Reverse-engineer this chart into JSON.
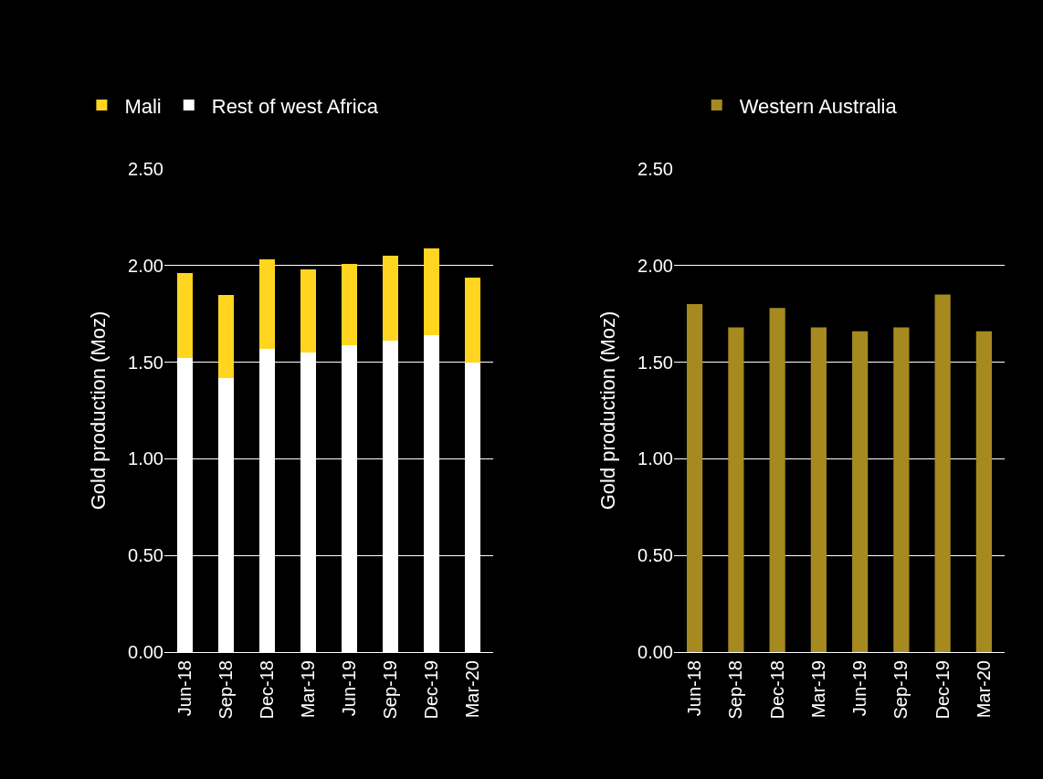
{
  "chart_data": [
    {
      "type": "bar",
      "stacked": true,
      "categories": [
        "Jun-18",
        "Sep-18",
        "Dec-18",
        "Mar-19",
        "Jun-19",
        "Sep-19",
        "Dec-19",
        "Mar-20"
      ],
      "ylabel": "Gold production (Moz)",
      "ylim": [
        0,
        2.5
      ],
      "yticks": [
        {
          "value": 0,
          "label": "0.00"
        },
        {
          "value": 0.5,
          "label": "0.50"
        },
        {
          "value": 1,
          "label": "1.00"
        },
        {
          "value": 1.5,
          "label": "1.50"
        },
        {
          "value": 2,
          "label": "2.00"
        },
        {
          "value": 2.5,
          "label": "2.50"
        }
      ],
      "grid": "y",
      "legend": "top",
      "series": [
        {
          "name": "Rest of west Africa",
          "color": "#ffffff",
          "values": [
            1.52,
            1.42,
            1.57,
            1.55,
            1.59,
            1.61,
            1.64,
            1.5
          ]
        },
        {
          "name": "Mali",
          "color": "#ffd520",
          "values": [
            0.44,
            0.43,
            0.46,
            0.43,
            0.42,
            0.44,
            0.45,
            0.44
          ]
        }
      ]
    },
    {
      "type": "bar",
      "categories": [
        "Jun-18",
        "Sep-18",
        "Dec-18",
        "Mar-19",
        "Jun-19",
        "Sep-19",
        "Dec-19",
        "Mar-20"
      ],
      "ylabel": "Gold production (Moz)",
      "ylim": [
        0,
        2.5
      ],
      "yticks": [
        {
          "value": 0,
          "label": "0.00"
        },
        {
          "value": 0.5,
          "label": "0.50"
        },
        {
          "value": 1,
          "label": "1.00"
        },
        {
          "value": 1.5,
          "label": "1.50"
        },
        {
          "value": 2,
          "label": "2.00"
        },
        {
          "value": 2.5,
          "label": "2.50"
        }
      ],
      "grid": "y",
      "legend": "top",
      "series": [
        {
          "name": "Western Australia",
          "color": "#a68a20",
          "values": [
            1.8,
            1.68,
            1.78,
            1.68,
            1.66,
            1.68,
            1.85,
            1.66
          ]
        }
      ]
    }
  ]
}
